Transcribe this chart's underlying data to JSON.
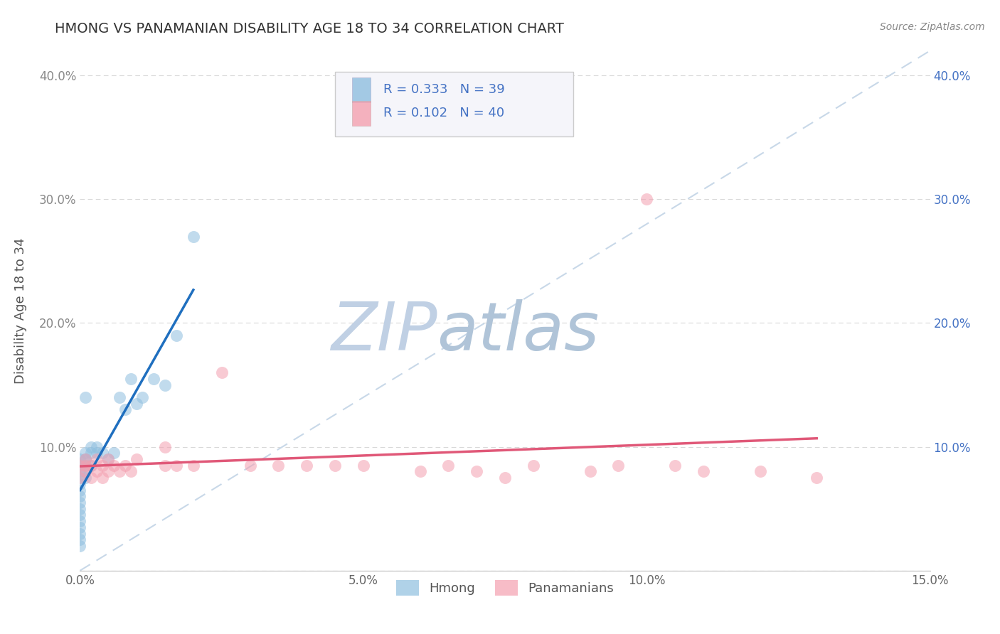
{
  "title": "HMONG VS PANAMANIAN DISABILITY AGE 18 TO 34 CORRELATION CHART",
  "source_text": "Source: ZipAtlas.com",
  "ylabel": "Disability Age 18 to 34",
  "xlim": [
    0.0,
    0.15
  ],
  "ylim": [
    0.0,
    0.42
  ],
  "x_ticks": [
    0.0,
    0.05,
    0.1,
    0.15
  ],
  "x_tick_labels": [
    "0.0%",
    "5.0%",
    "10.0%",
    "15.0%"
  ],
  "y_ticks": [
    0.0,
    0.1,
    0.2,
    0.3,
    0.4
  ],
  "y_tick_labels": [
    "",
    "10.0%",
    "20.0%",
    "30.0%",
    "40.0%"
  ],
  "hmong_R": 0.333,
  "hmong_N": 39,
  "panamanian_R": 0.102,
  "panamanian_N": 40,
  "hmong_color": "#8fbfdf",
  "panamanian_color": "#f4a0b0",
  "hmong_line_color": "#1f6fbf",
  "panamanian_line_color": "#e05878",
  "diagonal_color": "#c8d8e8",
  "background_color": "#ffffff",
  "grid_color": "#d8d8d8",
  "legend_text_color": "#4472c4",
  "watermark_zip_color": "#c8d8e8",
  "watermark_atlas_color": "#b8cce0",
  "hmong_x": [
    0.0,
    0.0,
    0.0,
    0.0,
    0.0,
    0.0,
    0.0,
    0.0,
    0.0,
    0.0,
    0.0,
    0.0,
    0.0,
    0.0,
    0.0,
    0.001,
    0.001,
    0.001,
    0.001,
    0.001,
    0.001,
    0.001,
    0.002,
    0.002,
    0.002,
    0.003,
    0.003,
    0.004,
    0.005,
    0.006,
    0.007,
    0.008,
    0.009,
    0.01,
    0.011,
    0.013,
    0.015,
    0.017,
    0.02
  ],
  "hmong_y": [
    0.09,
    0.085,
    0.08,
    0.075,
    0.07,
    0.065,
    0.06,
    0.055,
    0.05,
    0.045,
    0.04,
    0.035,
    0.03,
    0.025,
    0.02,
    0.095,
    0.09,
    0.085,
    0.08,
    0.075,
    0.14,
    0.09,
    0.1,
    0.095,
    0.085,
    0.1,
    0.095,
    0.095,
    0.09,
    0.095,
    0.14,
    0.13,
    0.155,
    0.135,
    0.14,
    0.155,
    0.15,
    0.19,
    0.27
  ],
  "panamanian_x": [
    0.0,
    0.0,
    0.001,
    0.001,
    0.001,
    0.002,
    0.002,
    0.003,
    0.003,
    0.004,
    0.004,
    0.005,
    0.005,
    0.006,
    0.007,
    0.008,
    0.009,
    0.01,
    0.015,
    0.015,
    0.017,
    0.02,
    0.025,
    0.03,
    0.035,
    0.04,
    0.045,
    0.05,
    0.06,
    0.065,
    0.07,
    0.075,
    0.08,
    0.09,
    0.095,
    0.1,
    0.105,
    0.11,
    0.12,
    0.13
  ],
  "panamanian_y": [
    0.085,
    0.075,
    0.09,
    0.085,
    0.08,
    0.085,
    0.075,
    0.09,
    0.08,
    0.085,
    0.075,
    0.09,
    0.08,
    0.085,
    0.08,
    0.085,
    0.08,
    0.09,
    0.1,
    0.085,
    0.085,
    0.085,
    0.16,
    0.085,
    0.085,
    0.085,
    0.085,
    0.085,
    0.08,
    0.085,
    0.08,
    0.075,
    0.085,
    0.08,
    0.085,
    0.3,
    0.085,
    0.08,
    0.08,
    0.075
  ]
}
